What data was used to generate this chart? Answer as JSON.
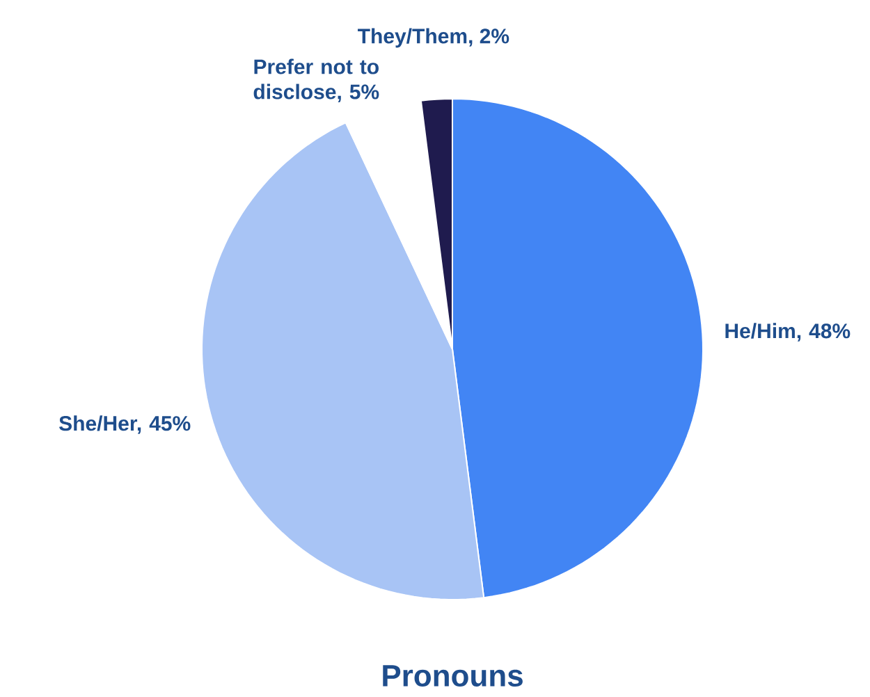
{
  "chart_data": {
    "type": "pie",
    "title": "Pronouns",
    "categories": [
      "He/Him, 48%",
      "She/Her, 45%",
      "Prefer not to disclose, 5%",
      "They/Them, 2%"
    ],
    "values": [
      48,
      45,
      5,
      2
    ],
    "colors": [
      "#4285f4",
      "#a8c4f5",
      "#ffffff",
      "#1f1b4e"
    ]
  }
}
